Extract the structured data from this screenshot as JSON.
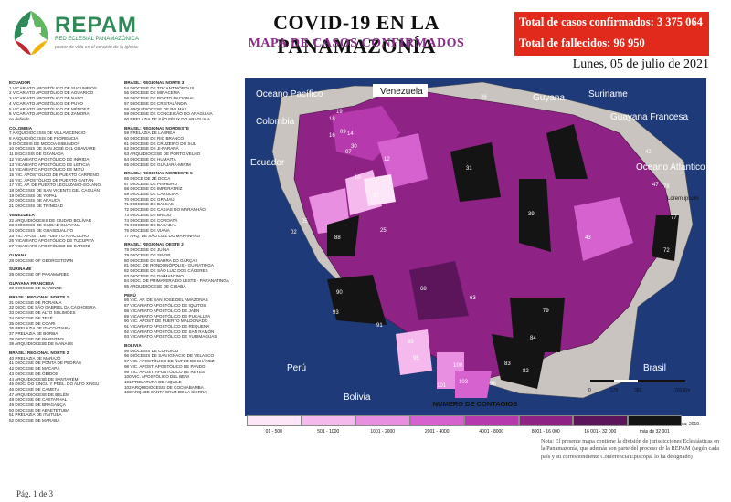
{
  "header": {
    "logo_name": "REPAM",
    "logo_subtitle": "RED ECLESIAL PANAMAZÓNICA",
    "logo_tagline": "pastor de vida en el corazón de la iglesia",
    "title": "COVID-19 EN LA PANAMAZONÍA",
    "subtitle": "MAPA DE CASOS CONFIRMADOS",
    "total_cases": "Total de casos confirmados: 3 375 064",
    "total_deaths": "Total de fallecidos: 96 950",
    "date": "Lunes, 05 de julio de 2021"
  },
  "colors": {
    "brand_green": "#2e8b57",
    "alert_red": "#e22a1c",
    "ocean": "#1f3a78",
    "accent_purple": "#8b2b8b"
  },
  "jurisdictions_col1": [
    {
      "section": "ECUADOR",
      "items": [
        "1 VICARIATO APOSTÓLICO DE SUCUMBÍOS",
        "2 VICARIATO APOSTÓLICO DE AGUARICO",
        "3 VICARIATO APOSTÓLICO DE NAPO",
        "4 VICARIATO APOSTÓLICO DE PUYO",
        "5 VICARIATO APOSTÓLICO DE MÉNDEZ",
        "6 VICARIATO APOSTÓLICO DE ZAMORA",
        "no definido"
      ]
    },
    {
      "section": "COLOMBIA",
      "items": [
        "7 ARQUIDIÓCESIS DE VILLAVICENCIO",
        "8 ARQUIDIÓCESIS DE FLORENCIA",
        "9 DIÓCESIS DE MOCOA-SIBUNDOY",
        "10 DIÓCESIS DE SAN JOSÉ DEL GUAVIARE",
        "11 DIÓCESIS DE GRANADA",
        "12 VICARIATO APOSTÓLICO DE INÍRIDA",
        "13 VICARIATO APOSTÓLICO DE LETICIA",
        "14 VICARIATO APOSTÓLICO DE MITÚ",
        "15 VIC. APOSTÓLICO DE PUERTO CARREÑO",
        "16 VIC. APOSTÓLICO DE PUERTO GAITÁN",
        "17 VIC. AP. DE PUERTO LEGUÍZAMO-SOLANO",
        "18 DIÓCESIS DE SAN VICENTE DEL CAGUÁN",
        "19 DIÓCESIS DE YOPAL",
        "20 DIÓCESIS DE ARAUCA",
        "21 DIÓCESIS DE TRINIDAD"
      ]
    },
    {
      "section": "VENEZUELA",
      "items": [
        "22 ARQUIDIÓCESIS DE CIUDAD BOLÍVAR",
        "23 DIÓCESIS DE CIUDAD GUAYANA",
        "24 DIÓCESIS DE GUASDUALITO",
        "25 VIC. APOST. DE PUERTO AYACUCHO",
        "26 VICARIATO APOSTÓLICO DE TUCUPITA",
        "27 VICARIATO APOSTÓLICO DE CARONÍ"
      ]
    },
    {
      "section": "GUYANA",
      "items": [
        "28 DIOCESE OF GEORGETOWN"
      ]
    },
    {
      "section": "SURINAME",
      "items": [
        "29 DIOCESE OF PARAMARIBO"
      ]
    },
    {
      "section": "GUAYANA FRANCESA",
      "items": [
        "30 DIOCESE DE CAYENNE"
      ]
    },
    {
      "section": "BRASIL: REGIONAL NORTE 1",
      "items": [
        "31 DIOCESE DE RORAIMA",
        "32 DIOC. DE SÃO GABRIEL DA CACHOEIRA",
        "33 DIOCESE DE ALTO SOLIMÕES",
        "34 DIOCESE DE TEFÉ",
        "35 DIOCESE DE COARI",
        "36 PRELAZIA DE ITACOATIARA",
        "37 PRELAZIA DE BORBA",
        "38 DIOCESE DE PARINTINS",
        "39 ARQUIDIOCESE DE MANAUS"
      ]
    },
    {
      "section": "BRASIL: REGIONAL NORTE 2",
      "items": [
        "40 PRELAZIA DE MARAJÓ",
        "41 DIOCESE DE PONTA DE PEDRAS",
        "42 DIOCESE DE MACAPÁ",
        "43 DIOCESE DE ÓBIDOS",
        "44 ARQUIDIOCESE DE SANTARÉM",
        "45 DIOC. DO XINGU Y PREL. DO ALTO XINGU",
        "46 DIOCESE DE CAMETÁ",
        "47 ARQUIDIOCESE DE BELÉM",
        "48 DIOCESE DE CASTANHAL",
        "49 DIOCESE DE BRAGANÇA",
        "50 DIOCESE DE ABAETETUBA",
        "51 PRELAZIA DE ITAITUBA",
        "52 DIOCESE DE MARABÁ"
      ]
    }
  ],
  "jurisdictions_col2": [
    {
      "section": "BRASIL: REGIONAL NORTE 3",
      "items": [
        "54 DIOCESE DE TOCANTINÓPOLIS",
        "55 DIOCESE DE MIRACEMA",
        "56 DIOCESE DE PORTO NACIONAL",
        "57 DIOCESE DE CRISTALÂNDIA",
        "58 ARQUIDIOCESE DE PALMAS",
        "59 DIOCESE DE CONCEIÇÃO DO ARAGUAIA",
        "60 PRELAZIA DE SÃO FÉLIX DO ARAGUAIA"
      ]
    },
    {
      "section": "BRASIL: REGIONAL NOROESTE",
      "items": [
        "59 PRELAZIA DE LÁBREA",
        "60 DIOCESE DE RIO BRANCO",
        "61 DIOCESE DE CRUZEIRO DO SUL",
        "62 DIOCESE DE JI-PARANÁ",
        "63 ARQUIDIOCESE DE PORTO VELHO",
        "64 DIOCESE DE HUMAITÁ",
        "65 DIOCESE DE GUAJARÁ-MIRIM"
      ]
    },
    {
      "section": "BRASIL: REGIONAL NORDESTE 5",
      "items": [
        "66 DIOCE DE ZÉ DOCA",
        "67 DIOCESE DE PINHEIRO",
        "68 DIOCESE DE IMPERATRIZ",
        "69 DIOCESE DE CAROLINA",
        "70 DIOCESE DE GRAJAÚ",
        "71 DIOCESE DE BALSAS",
        "72 DIOCESE DE CAXIAS DO MARANHÃO",
        "73 DIOCESE DE BREJO",
        "74 DIOCESE DE COROATÁ",
        "75 DIOCESE DE BACABAL",
        "76 DIOCESE DE VIANA",
        "77 ARQ. DE SÃO LUIZ DO MARANHÃO"
      ]
    },
    {
      "section": "BRASIL: REGIONAL OESTE 2",
      "items": [
        "78 DIOCESE DE JUÍNA",
        "79 DIOCESE DE SINOP",
        "80 DIOCESE DE BARRA DO GARÇAS",
        "81 DIOC. DE RONDONÓPOLIS - GUIRATINGA",
        "82 DIOCESE DE SÃO LUIZ DOS CÁCERES",
        "83 DIOCESE DE DIAMANTINO",
        "84 DIOC. DE PRIMAVERA DO LESTE - PARANATINGA",
        "85 ARQUIDIOCESE DE CUIABÁ"
      ]
    },
    {
      "section": "PERÚ",
      "items": [
        "86 VIC. AP. DE SAN JOSÉ DEL AMAZONAS",
        "87 VICARIATO APOSTÓLICO DE IQUITOS",
        "88 VICARIATO APOSTÓLICO DE JAÉN",
        "89 VICARIATO APOSTÓLICO DE PUCALLPA",
        "90 VIC. APOST. DE PUERTO MALDONADO",
        "91 VICARIATO APOSTÓLICO DE REQUENA",
        "92 VICARIATO APOSTÓLICO DE SAN RAMÓN",
        "93 VICARIATO APOSTÓLICO DE YURIMAGUAS"
      ]
    },
    {
      "section": "BOLIVIA",
      "items": [
        "95 DIÓCESIS DE COROICO",
        "96 DIÓCESIS DE SAN IGNACIO DE VELASCO",
        "97 VIC. APOSTÓLICO DE ÑUFLO DE CHÁVEZ",
        "98 VIC. APOST. APOSTÓLICO DE PANDO",
        "99 VIC. APOST. APOSTÓLICO DE REYES",
        "100 VIC. APOSTÓLICO DEL BENI",
        "101 PRELATURA DE AIQUILE",
        "102 ARQUIDIÓCESIS DE COCHABAMBA",
        "103 ARQ. DE SANTA CRUZ DE LA SIERRA"
      ]
    }
  ],
  "map": {
    "labels": {
      "ocean_pacific": "Oceano Pacífico",
      "ocean_atlantic": "Oceano Atlántico",
      "venezuela": "Venezuela",
      "guyana": "Guyana",
      "suriname": "Suriname",
      "guayana_francesa": "Guayana Francesa",
      "colombia": "Colombia",
      "ecuador": "Ecuador",
      "peru": "Perú",
      "bolivia": "Bolivia",
      "brasil": "Brasil",
      "lorem": "Lorem ipsum"
    },
    "region_numbers": [
      "26",
      "18",
      "19",
      "14",
      "12",
      "25",
      "31",
      "42",
      "47",
      "07",
      "78",
      "77",
      "09",
      "16",
      "30",
      "10",
      "37",
      "05",
      "88",
      "39",
      "43",
      "72",
      "93",
      "68",
      "63",
      "90",
      "91",
      "79",
      "84",
      "89",
      "95",
      "100",
      "83",
      "101",
      "103",
      "96",
      "82",
      "02"
    ],
    "scale": [
      "0",
      "175",
      "350",
      "700 Km"
    ]
  },
  "legend": {
    "title": "NUMERO DE CONTAGIOS",
    "bins": [
      {
        "label": "01 - 500",
        "color": "#fde6f7"
      },
      {
        "label": "501 - 1000",
        "color": "#f6b9ee"
      },
      {
        "label": "1001 - 2000",
        "color": "#e98fe2"
      },
      {
        "label": "2001 - 4000",
        "color": "#d562cf"
      },
      {
        "label": "4001 - 8000",
        "color": "#b63aae"
      },
      {
        "label": "8001 - 16 000",
        "color": "#8e2285"
      },
      {
        "label": "16 001 - 32 000",
        "color": "#5c145a"
      },
      {
        "label": "más de 32 001",
        "color": "#141414"
      }
    ]
  },
  "source": "Fuente Mapa: Mapeo Red Eclesial Panamazónica: 2019.",
  "note": "Nota: El presente mapa contiene la división de jurisdicciones Eclesiásticas en la Panamazonía, que además son parte del proceso de la REPAM (según cada país y su correspondiente Conferencia Episcopal lo ha designado)",
  "page": "Pág. 1 de 3"
}
